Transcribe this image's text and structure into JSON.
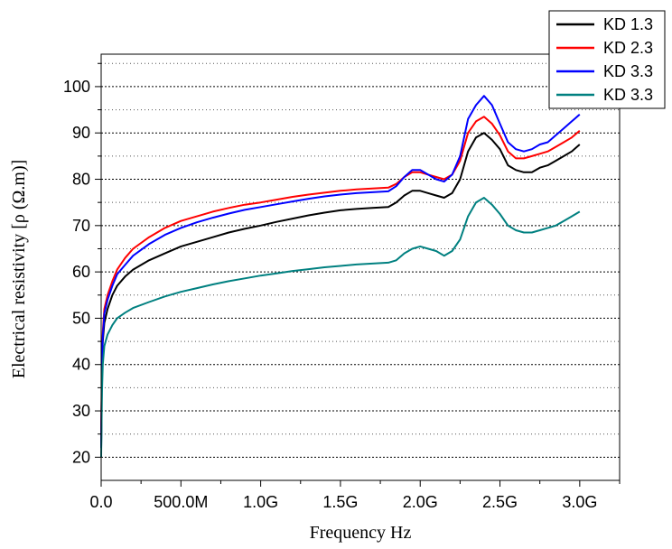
{
  "chart_data": {
    "type": "line",
    "title": "",
    "xlabel": "Frequency Hz",
    "ylabel": "Electrical resistivity [ρ (Ω.m)]",
    "xlim": [
      0,
      3.25
    ],
    "ylim": [
      15,
      107
    ],
    "x_unit": "GHz",
    "grid": "horizontal dashed major lines and dotted minor lines",
    "legend_position": "top-right",
    "x_ticks": [
      {
        "value": 0.0,
        "label": "0.0"
      },
      {
        "value": 0.5,
        "label": "500.0M"
      },
      {
        "value": 1.0,
        "label": "1.0G"
      },
      {
        "value": 1.5,
        "label": "1.5G"
      },
      {
        "value": 2.0,
        "label": "2.0G"
      },
      {
        "value": 2.5,
        "label": "2.5G"
      },
      {
        "value": 3.0,
        "label": "3.0G"
      }
    ],
    "y_ticks": [
      {
        "value": 20,
        "label": "20"
      },
      {
        "value": 30,
        "label": "30"
      },
      {
        "value": 40,
        "label": "40"
      },
      {
        "value": 50,
        "label": "50"
      },
      {
        "value": 60,
        "label": "60"
      },
      {
        "value": 70,
        "label": "70"
      },
      {
        "value": 80,
        "label": "80"
      },
      {
        "value": 90,
        "label": "90"
      },
      {
        "value": 100,
        "label": "100"
      }
    ],
    "series": [
      {
        "name": "KD 1.3",
        "color": "#000000",
        "x": [
          0.0,
          0.005,
          0.01,
          0.02,
          0.04,
          0.07,
          0.1,
          0.15,
          0.2,
          0.3,
          0.4,
          0.5,
          0.6,
          0.7,
          0.8,
          0.9,
          1.0,
          1.1,
          1.2,
          1.3,
          1.4,
          1.5,
          1.6,
          1.7,
          1.8,
          1.85,
          1.9,
          1.95,
          2.0,
          2.05,
          2.1,
          2.15,
          2.2,
          2.25,
          2.3,
          2.35,
          2.4,
          2.45,
          2.5,
          2.55,
          2.6,
          2.65,
          2.7,
          2.75,
          2.8,
          2.85,
          2.9,
          2.95,
          3.0
        ],
        "y": [
          22,
          40,
          45,
          49,
          52,
          55,
          57,
          59,
          60.5,
          62.5,
          64,
          65.5,
          66.5,
          67.5,
          68.5,
          69.3,
          70,
          70.8,
          71.5,
          72.2,
          72.8,
          73.3,
          73.6,
          73.8,
          74,
          75,
          76.5,
          77.5,
          77.5,
          77,
          76.5,
          76,
          77,
          80,
          86,
          89,
          90,
          88.5,
          86.5,
          83,
          82,
          81.5,
          81.5,
          82.5,
          83,
          84,
          85,
          86,
          87.5
        ]
      },
      {
        "name": "KD 2.3",
        "color": "#ff0000",
        "x": [
          0.0,
          0.005,
          0.01,
          0.02,
          0.04,
          0.07,
          0.1,
          0.15,
          0.2,
          0.3,
          0.4,
          0.5,
          0.6,
          0.7,
          0.8,
          0.9,
          1.0,
          1.1,
          1.2,
          1.3,
          1.4,
          1.5,
          1.6,
          1.7,
          1.8,
          1.85,
          1.9,
          1.95,
          2.0,
          2.05,
          2.1,
          2.15,
          2.2,
          2.25,
          2.3,
          2.35,
          2.4,
          2.45,
          2.5,
          2.55,
          2.6,
          2.65,
          2.7,
          2.75,
          2.8,
          2.85,
          2.9,
          2.95,
          3.0
        ],
        "y": [
          24,
          42,
          47,
          52,
          55,
          58,
          60.5,
          63,
          65,
          67.5,
          69.5,
          71,
          72,
          73,
          73.8,
          74.5,
          75,
          75.6,
          76.2,
          76.7,
          77.1,
          77.5,
          77.8,
          78,
          78.2,
          79,
          80.5,
          81.5,
          81.5,
          81,
          80.5,
          80,
          81,
          84,
          90,
          92.5,
          93.5,
          92,
          89.5,
          86,
          84.5,
          84.5,
          85,
          85.5,
          86,
          87,
          88,
          89,
          90.5
        ]
      },
      {
        "name": "KD 3.3",
        "color": "#0000ff",
        "x": [
          0.0,
          0.005,
          0.01,
          0.02,
          0.04,
          0.07,
          0.1,
          0.15,
          0.2,
          0.3,
          0.4,
          0.5,
          0.6,
          0.7,
          0.8,
          0.9,
          1.0,
          1.1,
          1.2,
          1.3,
          1.4,
          1.5,
          1.6,
          1.7,
          1.8,
          1.85,
          1.9,
          1.95,
          2.0,
          2.05,
          2.1,
          2.15,
          2.2,
          2.25,
          2.3,
          2.35,
          2.4,
          2.45,
          2.5,
          2.55,
          2.6,
          2.65,
          2.7,
          2.75,
          2.8,
          2.85,
          2.9,
          2.95,
          3.0
        ],
        "y": [
          22,
          41,
          46,
          51,
          54,
          57,
          59.5,
          61.5,
          63.5,
          66,
          68,
          69.5,
          70.7,
          71.7,
          72.6,
          73.4,
          74,
          74.6,
          75.2,
          75.8,
          76.3,
          76.7,
          77,
          77.2,
          77.4,
          78.5,
          80.5,
          82,
          82,
          81,
          80,
          79.5,
          81,
          85,
          93,
          96,
          98,
          96,
          92,
          88,
          86.5,
          86,
          86.5,
          87.5,
          88,
          89.5,
          91,
          92.5,
          94
        ]
      },
      {
        "name": "KD 3.3",
        "color": "#008080",
        "x": [
          0.0,
          0.005,
          0.01,
          0.02,
          0.04,
          0.07,
          0.1,
          0.15,
          0.2,
          0.3,
          0.4,
          0.5,
          0.6,
          0.7,
          0.8,
          0.9,
          1.0,
          1.1,
          1.2,
          1.3,
          1.4,
          1.5,
          1.6,
          1.7,
          1.8,
          1.85,
          1.9,
          1.95,
          2.0,
          2.05,
          2.1,
          2.15,
          2.2,
          2.25,
          2.3,
          2.35,
          2.4,
          2.45,
          2.5,
          2.55,
          2.6,
          2.65,
          2.7,
          2.75,
          2.8,
          2.85,
          2.9,
          2.95,
          3.0
        ],
        "y": [
          20,
          34,
          40,
          44,
          46.5,
          48.5,
          50,
          51.2,
          52.2,
          53.5,
          54.7,
          55.7,
          56.5,
          57.3,
          58,
          58.6,
          59.2,
          59.7,
          60.2,
          60.6,
          61,
          61.3,
          61.6,
          61.8,
          62,
          62.5,
          64,
          65,
          65.5,
          65,
          64.5,
          63.5,
          64.5,
          67,
          72,
          75,
          76,
          74.5,
          72.5,
          70,
          69,
          68.5,
          68.5,
          69,
          69.5,
          70,
          71,
          72,
          73
        ]
      }
    ]
  }
}
